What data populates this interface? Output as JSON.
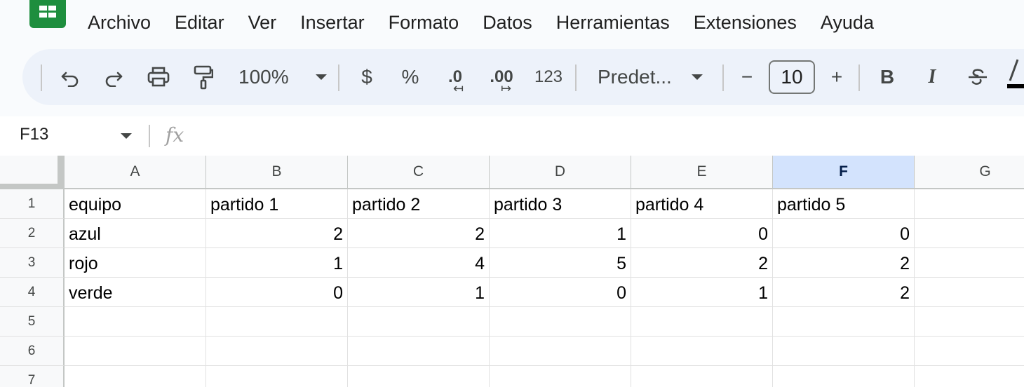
{
  "menu": [
    "Archivo",
    "Editar",
    "Ver",
    "Insertar",
    "Formato",
    "Datos",
    "Herramientas",
    "Extensiones",
    "Ayuda"
  ],
  "toolbar": {
    "zoom": "100%",
    "currency": "$",
    "percent": "%",
    "decrease_decimals": ".0",
    "increase_decimals": ".00",
    "number_format": "123",
    "font": "Predet...",
    "font_size": "10",
    "minus": "−",
    "plus": "+",
    "bold": "B",
    "italic": "I"
  },
  "formula_bar": {
    "name_box": "F13",
    "fx": "fx",
    "value": ""
  },
  "sheet": {
    "columns": [
      "A",
      "B",
      "C",
      "D",
      "E",
      "F",
      "G"
    ],
    "selected_column": "F",
    "rows": [
      "1",
      "2",
      "3",
      "4",
      "5",
      "6",
      "7"
    ],
    "cells": [
      [
        "equipo",
        "partido 1",
        "partido 2",
        "partido 3",
        "partido 4",
        "partido 5",
        ""
      ],
      [
        "azul",
        "2",
        "2",
        "1",
        "0",
        "0",
        ""
      ],
      [
        "rojo",
        "1",
        "4",
        "5",
        "2",
        "2",
        ""
      ],
      [
        "verde",
        "0",
        "1",
        "0",
        "1",
        "2",
        ""
      ],
      [
        "",
        "",
        "",
        "",
        "",
        "",
        ""
      ],
      [
        "",
        "",
        "",
        "",
        "",
        "",
        ""
      ],
      [
        "",
        "",
        "",
        "",
        "",
        "",
        ""
      ]
    ]
  },
  "colors": {
    "accent": "#0b57d0",
    "selected_header": "#d3e3fd",
    "toolbar_bg": "#edf2fa",
    "logo": "#1e8e3e"
  }
}
